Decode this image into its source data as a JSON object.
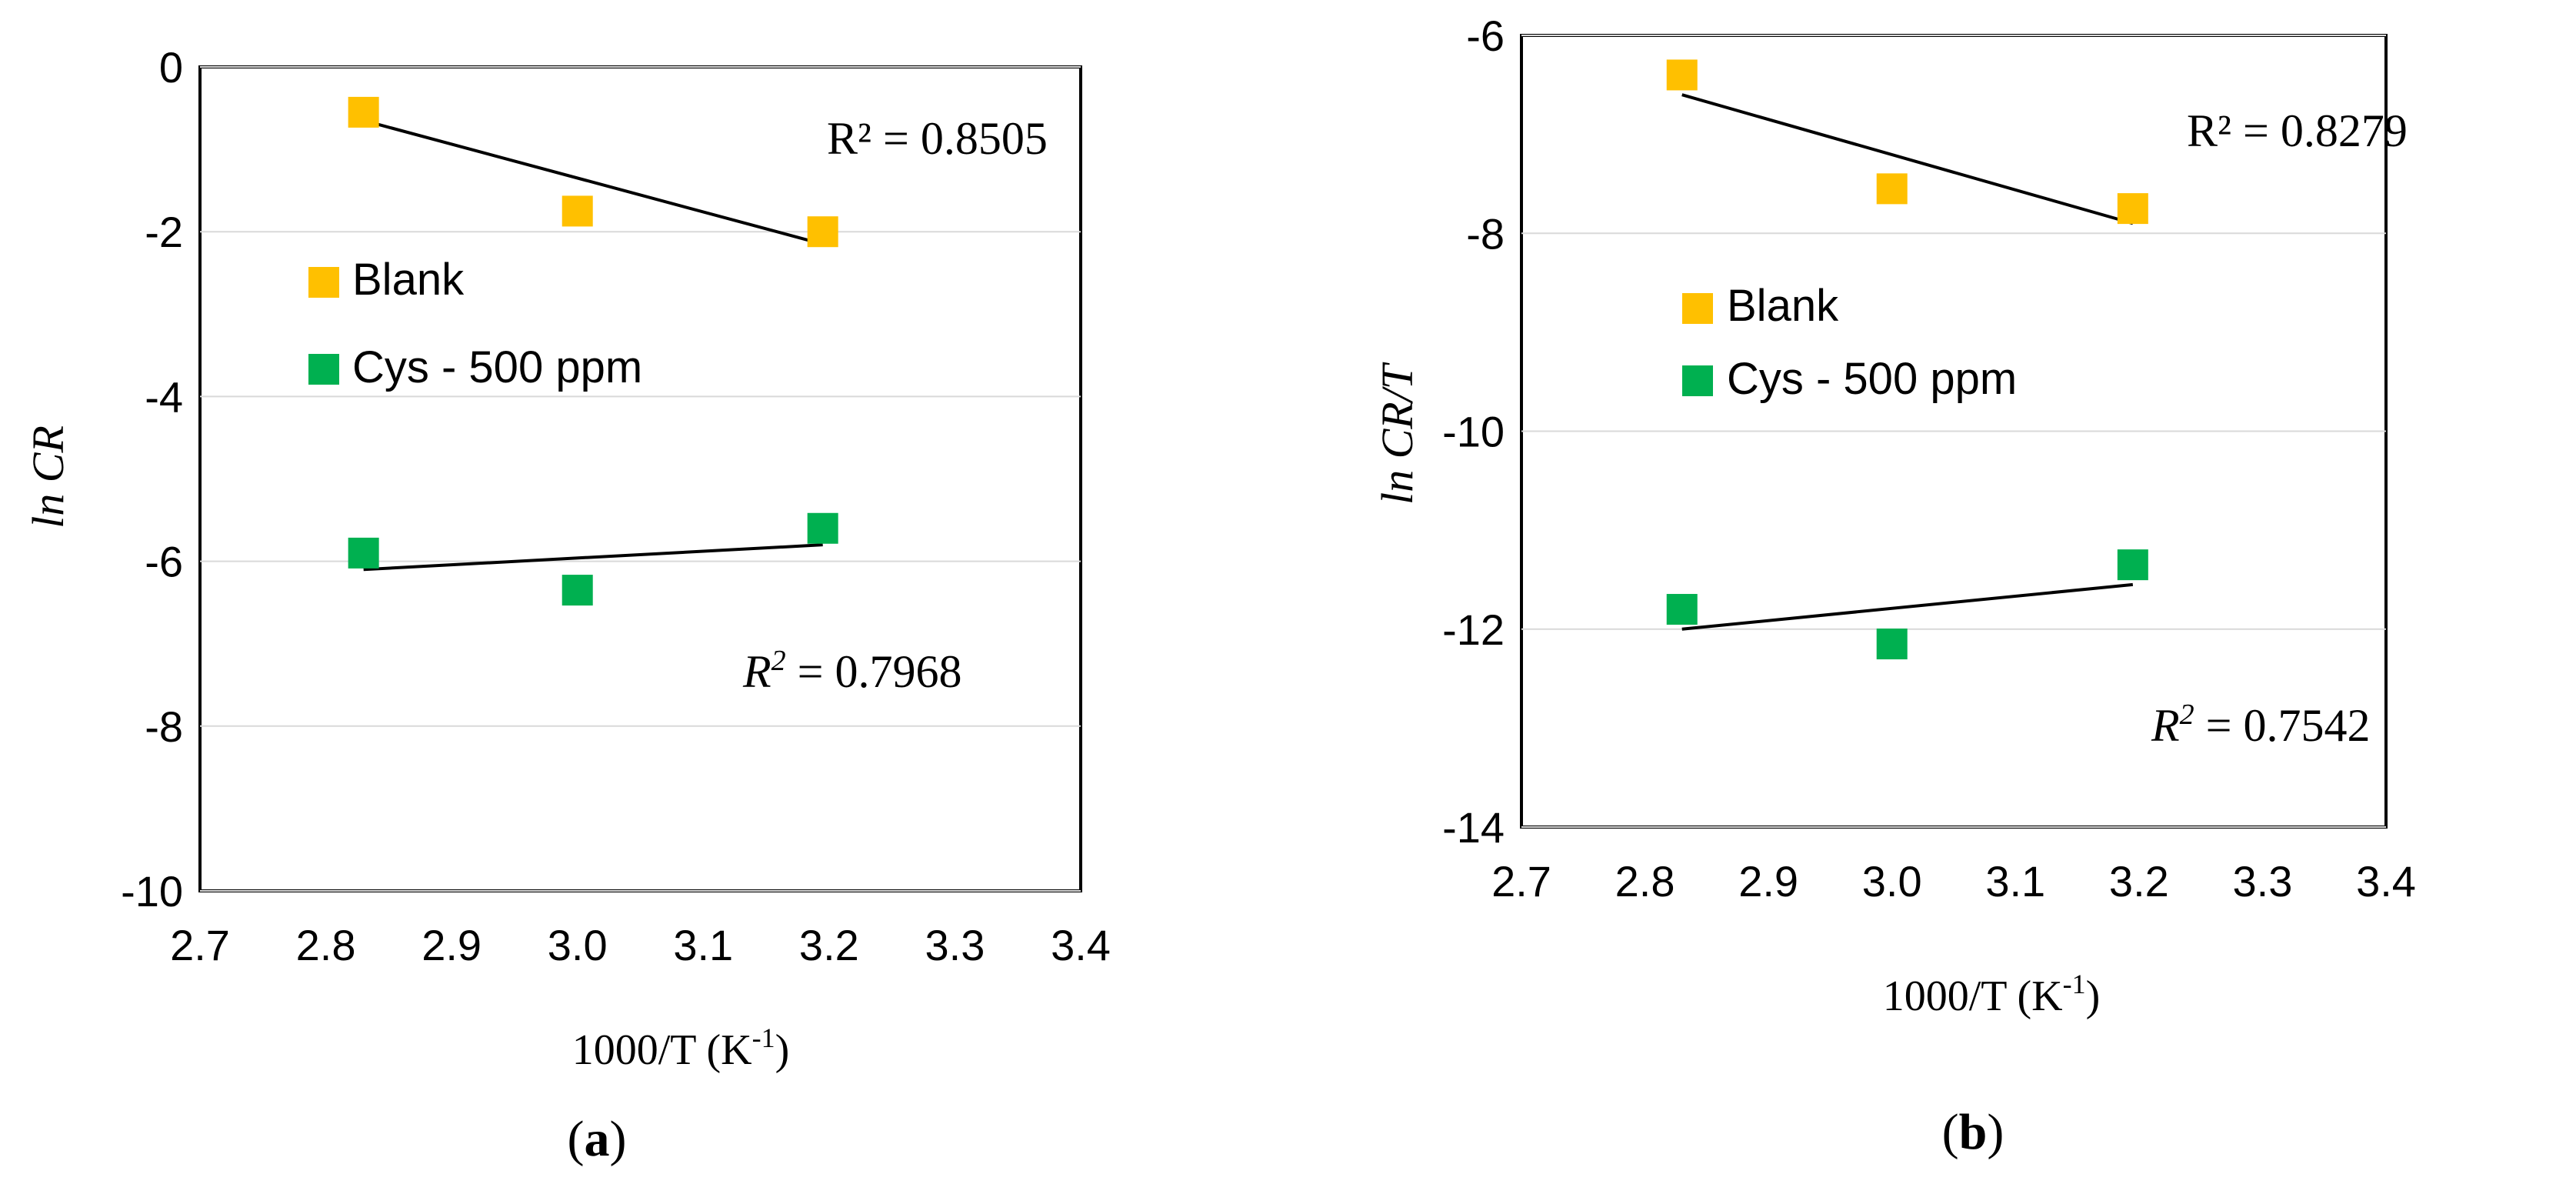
{
  "chart_data": [
    {
      "type": "scatter",
      "panel_label": "a",
      "xlabel": "1000/T (K",
      "xlabel_sup": "-1",
      "xlabel_close": ")",
      "ylabel": "ln CR",
      "xlim": [
        2.7,
        3.4
      ],
      "ylim": [
        -10,
        0
      ],
      "xticks": [
        2.7,
        2.8,
        2.9,
        3.0,
        3.1,
        3.2,
        3.3,
        3.4
      ],
      "xtick_labels": [
        "2.7",
        "2.8",
        "2.9",
        "3.0",
        "3.1",
        "3.2",
        "3.3",
        "3.4"
      ],
      "yticks": [
        0,
        -2,
        -4,
        -6,
        -8,
        -10
      ],
      "ytick_labels": [
        "0",
        "-2",
        "-4",
        "-6",
        "-8",
        "-10"
      ],
      "grid": "horizontal",
      "legend_position": "left",
      "series": [
        {
          "name": "Blank",
          "color": "#FFC000",
          "marker": "square",
          "x": [
            2.83,
            3.0,
            3.195
          ],
          "y": [
            -0.55,
            -1.75,
            -2.0
          ],
          "trendline": {
            "x": [
              2.83,
              3.195
            ],
            "y": [
              -0.65,
              -2.15
            ]
          },
          "r2_label": "R² = 0.8505",
          "r2_italic": false
        },
        {
          "name": "Cys - 500 ppm",
          "color": "#00B050",
          "marker": "square",
          "x": [
            2.83,
            3.0,
            3.195
          ],
          "y": [
            -5.9,
            -6.35,
            -5.6
          ],
          "trendline": {
            "x": [
              2.83,
              3.195
            ],
            "y": [
              -6.1,
              -5.8
            ]
          },
          "r2_label_prefix": "R",
          "r2_label_sup": "2",
          "r2_label_value": " = 0.7968",
          "r2_italic": true
        }
      ]
    },
    {
      "type": "scatter",
      "panel_label": "b",
      "xlabel": "1000/T (K",
      "xlabel_sup": "-1",
      "xlabel_close": ")",
      "ylabel": "ln CR/T",
      "xlim": [
        2.7,
        3.4
      ],
      "ylim": [
        -14,
        -6
      ],
      "xticks": [
        2.7,
        2.8,
        2.9,
        3.0,
        3.1,
        3.2,
        3.3,
        3.4
      ],
      "xtick_labels": [
        "2.7",
        "2.8",
        "2.9",
        "3.0",
        "3.1",
        "3.2",
        "3.3",
        "3.4"
      ],
      "yticks": [
        -6,
        -8,
        -10,
        -12,
        -14
      ],
      "ytick_labels": [
        "-6",
        "-8",
        "-10",
        "-12",
        "-14"
      ],
      "grid": "horizontal",
      "legend_position": "left",
      "series": [
        {
          "name": "Blank",
          "color": "#FFC000",
          "marker": "square",
          "x": [
            2.83,
            3.0,
            3.195
          ],
          "y": [
            -6.4,
            -7.55,
            -7.75
          ],
          "trendline": {
            "x": [
              2.83,
              3.195
            ],
            "y": [
              -6.6,
              -7.9
            ]
          },
          "r2_label": "R² = 0.8279",
          "r2_italic": false
        },
        {
          "name": "Cys - 500 ppm",
          "color": "#00B050",
          "marker": "square",
          "x": [
            2.83,
            3.0,
            3.195
          ],
          "y": [
            -11.8,
            -12.15,
            -11.35
          ],
          "trendline": {
            "x": [
              2.83,
              3.195
            ],
            "y": [
              -12.0,
              -11.55
            ]
          },
          "r2_label_prefix": "R",
          "r2_label_sup": "2",
          "r2_label_value": " = 0.7542",
          "r2_italic": true
        }
      ]
    }
  ]
}
